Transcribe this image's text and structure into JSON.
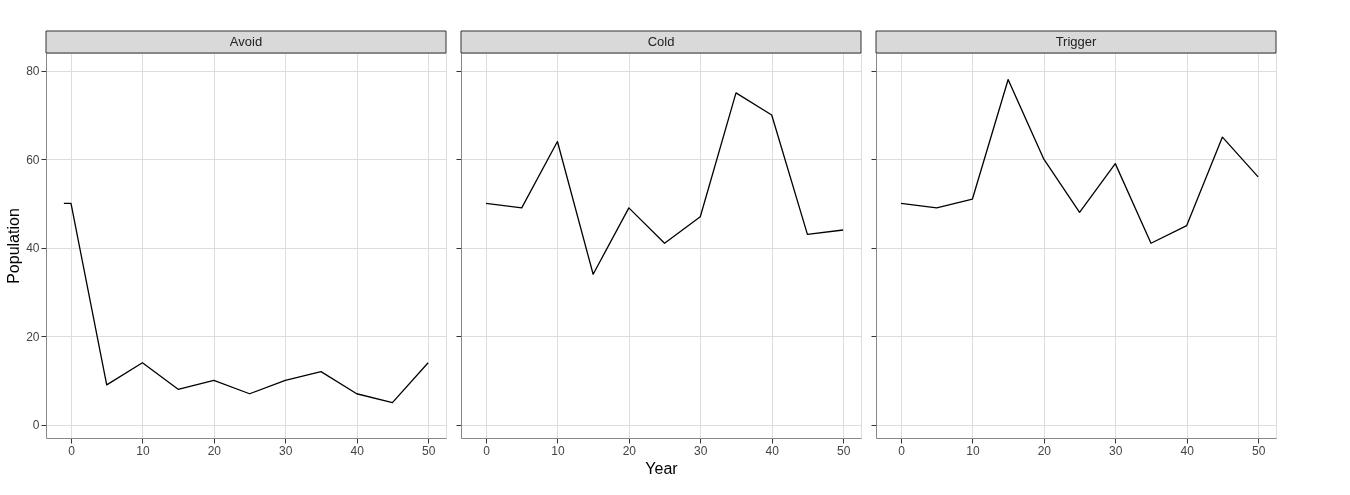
{
  "chart_data": [
    {
      "type": "line",
      "title": "Avoid",
      "ylabel": "Population",
      "x": [
        -1,
        0,
        5,
        10,
        15,
        20,
        25,
        30,
        35,
        40,
        45,
        50
      ],
      "xlim": [
        -3.5,
        52.5
      ],
      "ylim": [
        -3,
        84
      ],
      "xticks": [
        0,
        10,
        20,
        30,
        40,
        50
      ],
      "yticks": [
        0,
        20,
        40,
        60,
        80
      ],
      "grid": true,
      "series": [
        {
          "color": "#000000",
          "values": [
            50,
            50,
            9,
            14,
            8,
            10,
            7,
            10,
            12,
            7,
            5,
            14
          ]
        }
      ]
    },
    {
      "type": "line",
      "title": "Cold",
      "xlabel": "Year",
      "x": [
        0,
        5,
        10,
        15,
        20,
        25,
        30,
        35,
        40,
        45,
        50
      ],
      "xlim": [
        -3.5,
        52.5
      ],
      "ylim": [
        -3,
        84
      ],
      "xticks": [
        0,
        10,
        20,
        30,
        40,
        50
      ],
      "yticks": [
        0,
        20,
        40,
        60,
        80
      ],
      "grid": true,
      "tick_labels": "x",
      "series": [
        {
          "color": "#000000",
          "values": [
            50,
            49,
            64,
            34,
            49,
            41,
            47,
            75,
            70,
            43,
            44
          ]
        }
      ]
    },
    {
      "type": "line",
      "title": "Trigger",
      "x": [
        0,
        5,
        10,
        15,
        20,
        25,
        30,
        35,
        40,
        45,
        50
      ],
      "xlim": [
        -3.5,
        52.5
      ],
      "ylim": [
        -3,
        84
      ],
      "xticks": [
        0,
        10,
        20,
        30,
        40,
        50
      ],
      "yticks": [
        0,
        20,
        40,
        60,
        80
      ],
      "grid": true,
      "tick_labels": "x",
      "series": [
        {
          "color": "#000000",
          "values": [
            50,
            49,
            51,
            78,
            60,
            48,
            59,
            41,
            45,
            65,
            56
          ]
        }
      ]
    }
  ]
}
